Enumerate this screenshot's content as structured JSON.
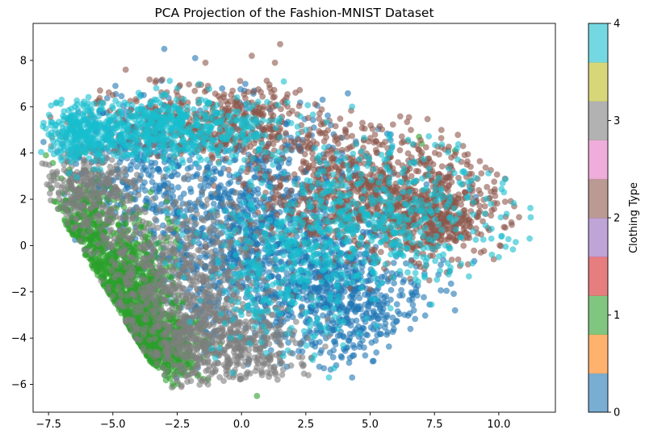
{
  "chart_data": {
    "type": "scatter",
    "title": "PCA Projection of the Fashion-MNIST Dataset",
    "xlabel": "",
    "ylabel": "",
    "xlim": [
      -8.1,
      12.2
    ],
    "ylim": [
      -7.2,
      9.6
    ],
    "xticks": [
      -7.5,
      -5.0,
      -2.5,
      0.0,
      2.5,
      5.0,
      7.5,
      10.0
    ],
    "xtick_labels": [
      "−7.5",
      "−5.0",
      "−2.5",
      "0.0",
      "2.5",
      "5.0",
      "7.5",
      "10.0"
    ],
    "yticks": [
      -6,
      -4,
      -2,
      0,
      2,
      4,
      6,
      8
    ],
    "ytick_labels": [
      "−6",
      "−4",
      "−2",
      "0",
      "2",
      "4",
      "6",
      "8"
    ],
    "grid": false,
    "marker_alpha": 0.6,
    "colormap": "tab10",
    "colorbar": {
      "label": "Clothing Type",
      "range": [
        0,
        4
      ],
      "ticks": [
        0,
        1,
        2,
        3,
        4
      ],
      "tick_labels": [
        "0",
        "1",
        "2",
        "3",
        "4"
      ],
      "colors": [
        "#1f77b4",
        "#ff7f0e",
        "#2ca02c",
        "#d62728",
        "#9467bd",
        "#8c564b",
        "#e377c2",
        "#7f7f7f",
        "#bcbd22",
        "#17becf"
      ]
    },
    "series": [
      {
        "class": 0,
        "color": "#1f77b4",
        "clusters": [
          {
            "n": 1300,
            "cx": 0.5,
            "cy": 0.5,
            "sx": 2.6,
            "sy": 2.4
          },
          {
            "n": 450,
            "cx": 4.0,
            "cy": -2.5,
            "sx": 1.6,
            "sy": 1.3
          },
          {
            "n": 250,
            "cx": -4.5,
            "cy": 3.5,
            "sx": 1.4,
            "sy": 1.4
          }
        ],
        "points": [
          [
            -3.0,
            8.5
          ],
          [
            -1.8,
            8.1
          ],
          [
            -4.9,
            6.9
          ],
          [
            -4.5,
            5.8
          ],
          [
            4.3,
            -5.7
          ],
          [
            3.2,
            -5.3
          ],
          [
            1.5,
            -5.1
          ],
          [
            5.1,
            -5.0
          ],
          [
            6.7,
            -2.8
          ],
          [
            8.3,
            -2.8
          ],
          [
            9.1,
            2.1
          ],
          [
            5.8,
            4.8
          ],
          [
            -3.8,
            6.5
          ]
        ]
      },
      {
        "class": 1,
        "color": "#2ca02c",
        "clusters": [
          {
            "n": 900,
            "cx": -4.8,
            "cy": -2.5,
            "sx": 1.0,
            "sy": 1.6
          },
          {
            "n": 550,
            "cx": -3.6,
            "cy": -4.3,
            "sx": 0.9,
            "sy": 0.7
          },
          {
            "n": 250,
            "cx": -6.2,
            "cy": 0.8,
            "sx": 0.6,
            "sy": 1.1
          }
        ],
        "points": [
          [
            -7.6,
            3.9
          ],
          [
            -7.3,
            3.0
          ],
          [
            -7.0,
            2.9
          ],
          [
            0.6,
            -6.5
          ],
          [
            -1.3,
            -5.8
          ],
          [
            6.9,
            4.7
          ],
          [
            8.3,
            4.1
          ],
          [
            0.1,
            5.1
          ],
          [
            7.0,
            4.4
          ]
        ]
      },
      {
        "class": 2,
        "color": "#8c564b",
        "clusters": [
          {
            "n": 800,
            "cx": 5.0,
            "cy": 2.3,
            "sx": 2.4,
            "sy": 1.4
          },
          {
            "n": 450,
            "cx": -1.0,
            "cy": 5.3,
            "sx": 2.2,
            "sy": 0.8
          },
          {
            "n": 350,
            "cx": 7.3,
            "cy": 1.2,
            "sx": 1.2,
            "sy": 0.8
          }
        ],
        "points": [
          [
            1.5,
            8.7
          ],
          [
            0.4,
            8.2
          ],
          [
            1.3,
            7.9
          ],
          [
            -1.4,
            7.9
          ],
          [
            -4.5,
            7.6
          ],
          [
            1.1,
            6.8
          ],
          [
            -1.3,
            6.9
          ],
          [
            -5.0,
            6.5
          ],
          [
            -5.5,
            6.7
          ],
          [
            4.1,
            4.7
          ],
          [
            4.7,
            5.3
          ],
          [
            9.7,
            1.3
          ],
          [
            10.2,
            0.8
          ],
          [
            10.6,
            1.7
          ],
          [
            9.3,
            -0.3
          ],
          [
            -2.4,
            -3.3
          ],
          [
            5.0,
            -1.9
          ],
          [
            7.3,
            -1.5
          ],
          [
            1.6,
            6.2
          ]
        ]
      },
      {
        "class": 3,
        "color": "#7f7f7f",
        "clusters": [
          {
            "n": 800,
            "cx": -2.5,
            "cy": -2.0,
            "sx": 1.8,
            "sy": 2.0
          },
          {
            "n": 350,
            "cx": -0.5,
            "cy": -4.5,
            "sx": 1.6,
            "sy": 0.9
          },
          {
            "n": 300,
            "cx": -6.0,
            "cy": 2.5,
            "sx": 0.9,
            "sy": 1.0
          }
        ],
        "points": [
          [
            -1.3,
            -6.0
          ],
          [
            1.4,
            -5.8
          ],
          [
            2.6,
            -5.6
          ],
          [
            -7.4,
            4.3
          ],
          [
            -6.9,
            3.5
          ]
        ]
      },
      {
        "class": 4,
        "color": "#17becf",
        "clusters": [
          {
            "n": 600,
            "cx": -3.2,
            "cy": 5.0,
            "sx": 2.3,
            "sy": 0.7
          },
          {
            "n": 500,
            "cx": 5.2,
            "cy": 1.3,
            "sx": 2.5,
            "sy": 1.7
          },
          {
            "n": 300,
            "cx": 1.5,
            "cy": -1.0,
            "sx": 1.8,
            "sy": 1.8
          },
          {
            "n": 200,
            "cx": -6.3,
            "cy": 4.8,
            "sx": 0.6,
            "sy": 0.6
          }
        ],
        "points": [
          [
            11.2,
            0.3
          ],
          [
            10.2,
            2.3
          ],
          [
            9.7,
            1.8
          ],
          [
            10.0,
            -0.5
          ],
          [
            4.3,
            6.0
          ],
          [
            1.0,
            6.2
          ],
          [
            1.5,
            5.5
          ],
          [
            -7.5,
            4.8
          ],
          [
            -7.2,
            5.2
          ],
          [
            -6.9,
            5.8
          ],
          [
            3.4,
            -5.7
          ],
          [
            3.6,
            -5.3
          ],
          [
            -2.9,
            6.0
          ]
        ]
      }
    ]
  }
}
